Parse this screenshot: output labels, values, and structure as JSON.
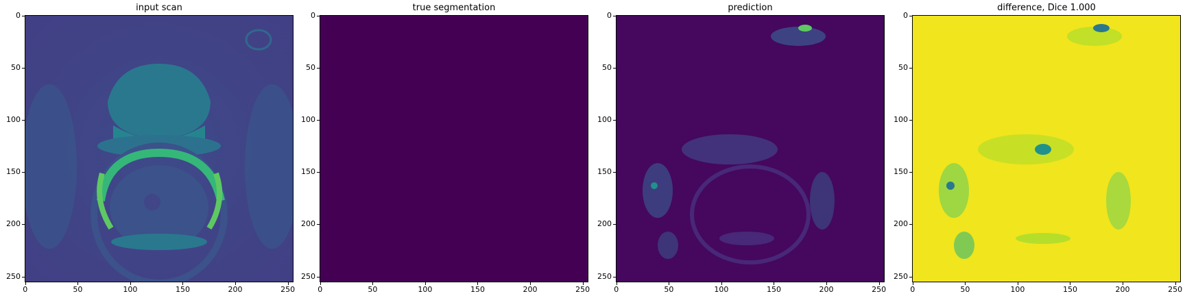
{
  "panels": [
    {
      "id": "input",
      "title": "input scan"
    },
    {
      "id": "truth",
      "title": "true segmentation"
    },
    {
      "id": "pred",
      "title": "prediction"
    },
    {
      "id": "diff",
      "title": "difference, Dice 1.000"
    }
  ],
  "axes": {
    "xticks": [
      "0",
      "50",
      "100",
      "150",
      "200",
      "250"
    ],
    "yticks": [
      "0",
      "50",
      "100",
      "150",
      "200",
      "250"
    ]
  },
  "colors": {
    "viridis_dark": "#440154",
    "viridis_blue": "#3b528b",
    "viridis_teal": "#21918c",
    "viridis_green": "#5ec962",
    "viridis_yellow": "#fde725"
  }
}
